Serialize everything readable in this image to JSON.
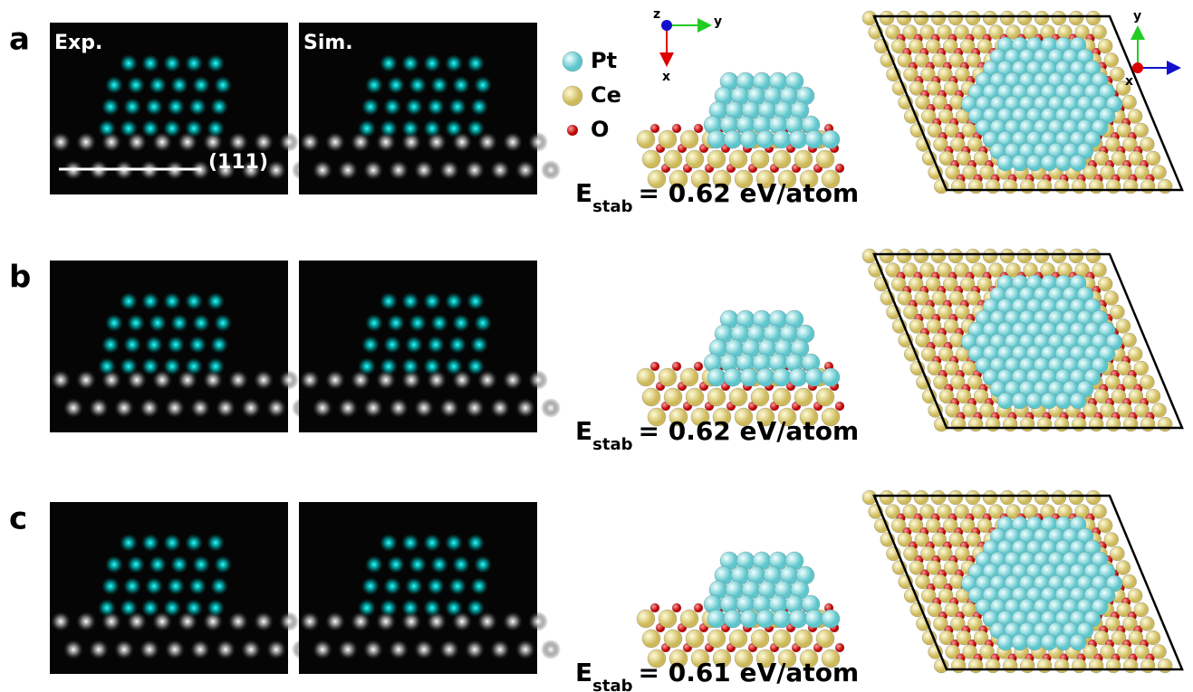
{
  "panels": [
    {
      "label": "a",
      "exp_label": "Exp.",
      "sim_label": "Sim.",
      "facet": "(111)",
      "energy": {
        "symbol": "E",
        "subscript": "stab",
        "value": "= 0.62 eV/atom"
      }
    },
    {
      "label": "b",
      "energy": {
        "symbol": "E",
        "subscript": "stab",
        "value": "= 0.62 eV/atom"
      }
    },
    {
      "label": "c",
      "energy": {
        "symbol": "E",
        "subscript": "stab",
        "value": "= 0.61 eV/atom"
      }
    }
  ],
  "legend": [
    {
      "name": "Pt"
    },
    {
      "name": "Ce"
    },
    {
      "name": "O"
    }
  ],
  "side_axes": [
    "z",
    "y",
    "x"
  ],
  "top_axes": [
    "y",
    "x"
  ]
}
